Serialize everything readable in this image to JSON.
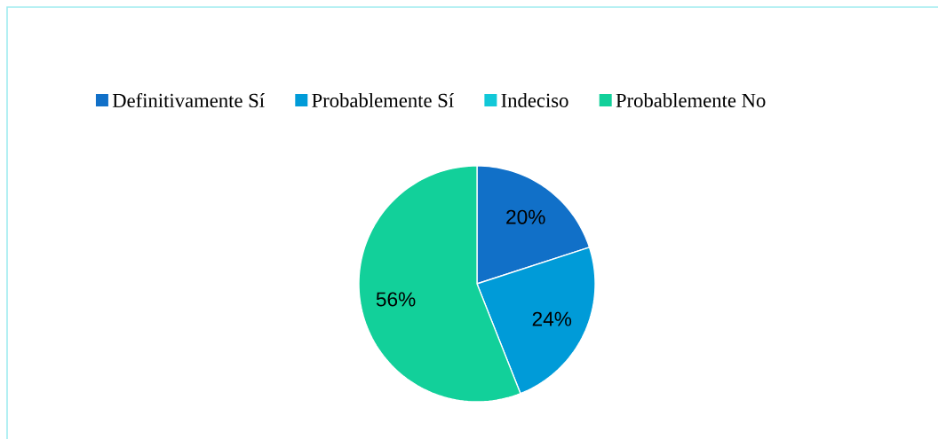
{
  "chart_data": {
    "type": "pie",
    "categories": [
      "Definitivamente Sí",
      "Probablemente Sí",
      "Indeciso",
      "Probablemente No"
    ],
    "values": [
      20,
      24,
      0,
      56
    ],
    "colors": [
      "#1170c8",
      "#009bd8",
      "#12c8d8",
      "#12d09a"
    ],
    "value_labels": [
      "20%",
      "24%",
      null,
      "56%"
    ],
    "legend": "top"
  }
}
